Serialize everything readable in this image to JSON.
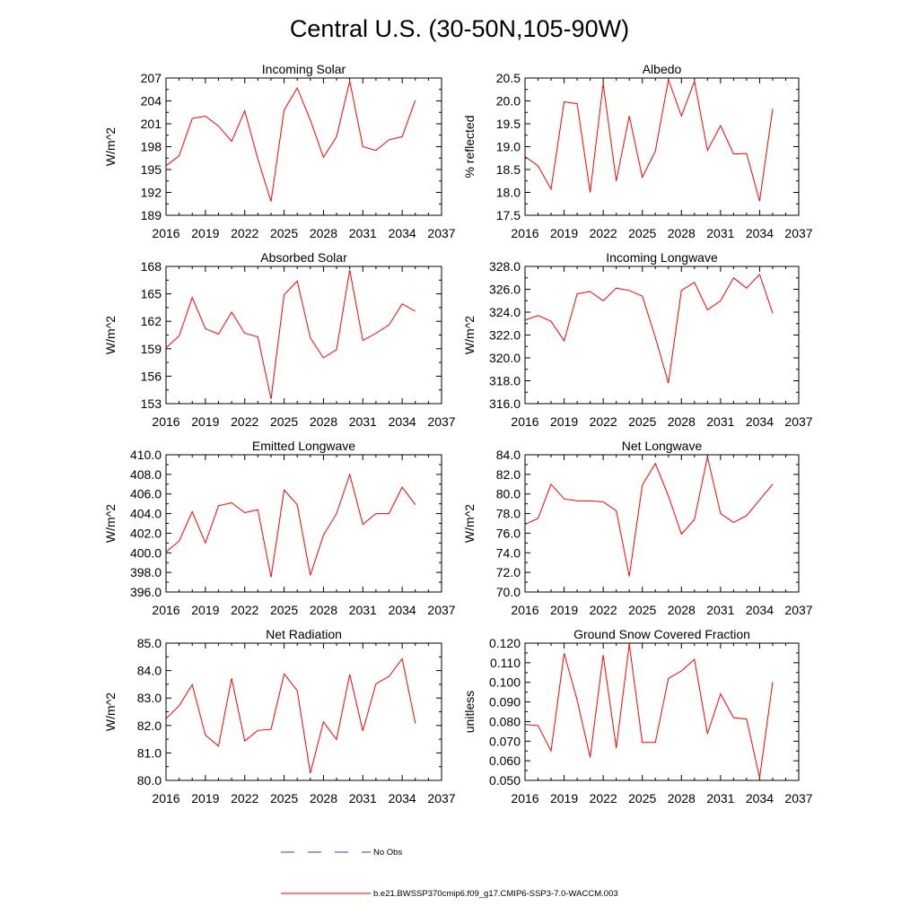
{
  "figure": {
    "title": "Central U.S. (30-50N,105-90W)",
    "legend": {
      "no_obs_label": "No Obs",
      "run_label": "b.e21.BWSSP370cmip6.f09_g17.CMIP6-SSP3-7.0-WACCM.003",
      "no_obs_color": "#3b3bd6",
      "run_color": "#ff0000"
    }
  },
  "chart_data": [
    {
      "type": "line",
      "title": "Incoming Solar",
      "ylabel": "W/m^2",
      "xlim": [
        2016,
        2037
      ],
      "ylim": [
        189,
        207
      ],
      "xticks": [
        "2016",
        "2019",
        "2022",
        "2025",
        "2028",
        "2031",
        "2034",
        "2037"
      ],
      "yticks": [
        "189",
        "192",
        "195",
        "198",
        "201",
        "204",
        "207"
      ],
      "x": [
        2016,
        2017,
        2018,
        2019,
        2020,
        2021,
        2022,
        2023,
        2024,
        2025,
        2026,
        2027,
        2028,
        2029,
        2030,
        2031,
        2032,
        2033,
        2034,
        2035
      ],
      "series": [
        {
          "name": "b.e21.BWSSP370cmip6.f09_g17.CMIP6-SSP3-7.0-WACCM.003",
          "values": [
            195.5,
            196.8,
            201.7,
            202.0,
            200.7,
            198.7,
            202.7,
            196.4,
            190.8,
            202.8,
            205.7,
            201.5,
            196.6,
            199.3,
            206.6,
            198.0,
            197.5,
            198.9,
            199.3,
            204.1
          ]
        }
      ]
    },
    {
      "type": "line",
      "title": "Albedo",
      "ylabel": "% reflected",
      "xlim": [
        2016,
        2037
      ],
      "ylim": [
        17.5,
        20.5
      ],
      "xticks": [
        "2016",
        "2019",
        "2022",
        "2025",
        "2028",
        "2031",
        "2034",
        "2037"
      ],
      "yticks": [
        "17.5",
        "18.0",
        "18.5",
        "19.0",
        "19.5",
        "20.0",
        "20.5"
      ],
      "x": [
        2016,
        2017,
        2018,
        2019,
        2020,
        2021,
        2022,
        2023,
        2024,
        2025,
        2026,
        2027,
        2028,
        2029,
        2030,
        2031,
        2032,
        2033,
        2034,
        2035
      ],
      "series": [
        {
          "name": "b.e21.BWSSP370cmip6.f09_g17.CMIP6-SSP3-7.0-WACCM.003",
          "values": [
            18.78,
            18.58,
            18.07,
            19.98,
            19.94,
            18.0,
            20.38,
            18.25,
            19.67,
            18.33,
            18.9,
            20.46,
            19.67,
            20.43,
            18.92,
            19.46,
            18.84,
            18.85,
            17.81,
            19.83
          ]
        }
      ]
    },
    {
      "type": "line",
      "title": "Absorbed Solar",
      "ylabel": "W/m^2",
      "xlim": [
        2016,
        2037
      ],
      "ylim": [
        153,
        168
      ],
      "xticks": [
        "2016",
        "2019",
        "2022",
        "2025",
        "2028",
        "2031",
        "2034",
        "2037"
      ],
      "yticks": [
        "153",
        "156",
        "159",
        "162",
        "165",
        "168"
      ],
      "x": [
        2016,
        2017,
        2018,
        2019,
        2020,
        2021,
        2022,
        2023,
        2024,
        2025,
        2026,
        2027,
        2028,
        2029,
        2030,
        2031,
        2032,
        2033,
        2034,
        2035
      ],
      "series": [
        {
          "name": "b.e21.BWSSP370cmip6.f09_g17.CMIP6-SSP3-7.0-WACCM.003",
          "values": [
            159.1,
            160.4,
            164.6,
            161.2,
            160.6,
            163.0,
            160.7,
            160.3,
            153.5,
            164.9,
            166.4,
            160.2,
            158.0,
            158.9,
            167.6,
            159.9,
            160.7,
            161.6,
            163.9,
            163.1
          ]
        }
      ]
    },
    {
      "type": "line",
      "title": "Incoming Longwave",
      "ylabel": "W/m^2",
      "xlim": [
        2016,
        2037
      ],
      "ylim": [
        316.0,
        328.0
      ],
      "xticks": [
        "2016",
        "2019",
        "2022",
        "2025",
        "2028",
        "2031",
        "2034",
        "2037"
      ],
      "yticks": [
        "316.0",
        "318.0",
        "320.0",
        "322.0",
        "324.0",
        "326.0",
        "328.0"
      ],
      "x": [
        2016,
        2017,
        2018,
        2019,
        2020,
        2021,
        2022,
        2023,
        2024,
        2025,
        2026,
        2027,
        2028,
        2029,
        2030,
        2031,
        2032,
        2033,
        2034,
        2035
      ],
      "series": [
        {
          "name": "b.e21.BWSSP370cmip6.f09_g17.CMIP6-SSP3-7.0-WACCM.003",
          "values": [
            323.3,
            323.7,
            323.2,
            321.5,
            325.6,
            325.8,
            325.0,
            326.1,
            325.9,
            325.4,
            321.8,
            317.8,
            325.9,
            326.6,
            324.2,
            325.0,
            327.0,
            326.1,
            327.3,
            323.9
          ]
        }
      ]
    },
    {
      "type": "line",
      "title": "Emitted Longwave",
      "ylabel": "W/m^2",
      "xlim": [
        2016,
        2037
      ],
      "ylim": [
        396.0,
        410.0
      ],
      "xticks": [
        "2016",
        "2019",
        "2022",
        "2025",
        "2028",
        "2031",
        "2034",
        "2037"
      ],
      "yticks": [
        "396.0",
        "398.0",
        "400.0",
        "402.0",
        "404.0",
        "406.0",
        "408.0",
        "410.0"
      ],
      "x": [
        2016,
        2017,
        2018,
        2019,
        2020,
        2021,
        2022,
        2023,
        2024,
        2025,
        2026,
        2027,
        2028,
        2029,
        2030,
        2031,
        2032,
        2033,
        2034,
        2035
      ],
      "series": [
        {
          "name": "b.e21.BWSSP370cmip6.f09_g17.CMIP6-SSP3-7.0-WACCM.003",
          "values": [
            400.1,
            401.2,
            404.2,
            401.0,
            404.8,
            405.1,
            404.1,
            404.4,
            397.5,
            406.4,
            404.9,
            397.7,
            401.8,
            404.0,
            408.0,
            402.9,
            404.0,
            404.0,
            406.7,
            404.9
          ]
        }
      ]
    },
    {
      "type": "line",
      "title": "Net Longwave",
      "ylabel": "W/m^2",
      "xlim": [
        2016,
        2037
      ],
      "ylim": [
        70.0,
        84.0
      ],
      "xticks": [
        "2016",
        "2019",
        "2022",
        "2025",
        "2028",
        "2031",
        "2034",
        "2037"
      ],
      "yticks": [
        "70.0",
        "72.0",
        "74.0",
        "76.0",
        "78.0",
        "80.0",
        "82.0",
        "84.0"
      ],
      "x": [
        2016,
        2017,
        2018,
        2019,
        2020,
        2021,
        2022,
        2023,
        2024,
        2025,
        2026,
        2027,
        2028,
        2029,
        2030,
        2031,
        2032,
        2033,
        2034,
        2035
      ],
      "series": [
        {
          "name": "b.e21.BWSSP370cmip6.f09_g17.CMIP6-SSP3-7.0-WACCM.003",
          "values": [
            76.9,
            77.5,
            81.0,
            79.5,
            79.3,
            79.3,
            79.2,
            78.3,
            71.6,
            80.9,
            83.1,
            79.8,
            75.9,
            77.4,
            83.8,
            78.0,
            77.1,
            77.8,
            79.4,
            81.0
          ]
        }
      ]
    },
    {
      "type": "line",
      "title": "Net Radiation",
      "ylabel": "W/m^2",
      "xlim": [
        2016,
        2037
      ],
      "ylim": [
        80.0,
        85.0
      ],
      "xticks": [
        "2016",
        "2019",
        "2022",
        "2025",
        "2028",
        "2031",
        "2034",
        "2037"
      ],
      "yticks": [
        "80.0",
        "81.0",
        "82.0",
        "83.0",
        "84.0",
        "85.0"
      ],
      "x": [
        2016,
        2017,
        2018,
        2019,
        2020,
        2021,
        2022,
        2023,
        2024,
        2025,
        2026,
        2027,
        2028,
        2029,
        2030,
        2031,
        2032,
        2033,
        2034,
        2035
      ],
      "series": [
        {
          "name": "b.e21.BWSSP370cmip6.f09_g17.CMIP6-SSP3-7.0-WACCM.003",
          "values": [
            82.25,
            82.72,
            83.49,
            81.65,
            81.25,
            83.72,
            81.43,
            81.82,
            81.86,
            83.88,
            83.27,
            80.26,
            82.13,
            81.49,
            83.86,
            81.8,
            83.52,
            83.79,
            84.43,
            82.08
          ]
        }
      ]
    },
    {
      "type": "line",
      "title": "Ground Snow Covered Fraction",
      "ylabel": "unitless",
      "xlim": [
        2016,
        2037
      ],
      "ylim": [
        0.05,
        0.12
      ],
      "xticks": [
        "2016",
        "2019",
        "2022",
        "2025",
        "2028",
        "2031",
        "2034",
        "2037"
      ],
      "yticks": [
        "0.050",
        "0.060",
        "0.070",
        "0.080",
        "0.090",
        "0.100",
        "0.110",
        "0.120"
      ],
      "x": [
        2016,
        2017,
        2018,
        2019,
        2020,
        2021,
        2022,
        2023,
        2024,
        2025,
        2026,
        2027,
        2028,
        2029,
        2030,
        2031,
        2032,
        2033,
        2034,
        2035
      ],
      "series": [
        {
          "name": "b.e21.BWSSP370cmip6.f09_g17.CMIP6-SSP3-7.0-WACCM.003",
          "values": [
            0.0785,
            0.078,
            0.065,
            0.1148,
            0.091,
            0.0617,
            0.1139,
            0.0665,
            0.1195,
            0.0693,
            0.0693,
            0.102,
            0.1058,
            0.1117,
            0.0738,
            0.0941,
            0.082,
            0.0813,
            0.0513,
            0.1002
          ]
        }
      ]
    }
  ]
}
